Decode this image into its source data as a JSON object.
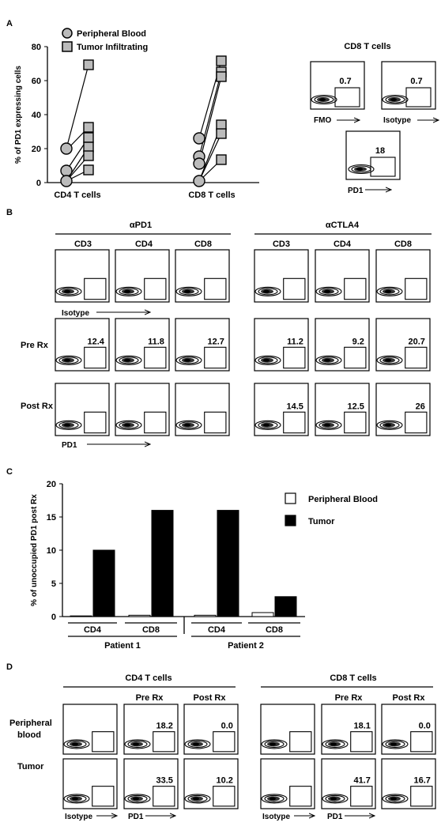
{
  "panel_labels": {
    "a": "A",
    "b": "B",
    "c": "C",
    "d": "D"
  },
  "panelA": {
    "legend": [
      "Peripheral Blood",
      "Tumor Infiltrating"
    ],
    "ylabel": "% of PD1 expressing cells",
    "yticks": [
      "0",
      "20",
      "40",
      "60",
      "80"
    ],
    "groups": [
      "CD4 T cells",
      "CD8 T cells"
    ],
    "inset_title": "CD8 T cells",
    "fmo": {
      "value": "0.7",
      "label": "FMO"
    },
    "isotype": {
      "value": "0.7",
      "label": "Isotype"
    },
    "pd1": {
      "value": "18",
      "label": "PD1"
    }
  },
  "panelB": {
    "left_title": "αPD1",
    "right_title": "αCTLA4",
    "cols": [
      "CD3",
      "CD4",
      "CD8"
    ],
    "rows": [
      "Pre Rx",
      "Post Rx"
    ],
    "iso_axis": "Isotype",
    "pd1_axis": "PD1",
    "pre_values": [
      "12.4",
      "11.8",
      "12.7",
      "11.2",
      "9.2",
      "20.7"
    ],
    "post_values": [
      "",
      "",
      "",
      "14.5",
      "12.5",
      "26"
    ]
  },
  "chart_data": {
    "type": "bar",
    "ylabel": "% of unoccupied PD1 post Rx",
    "ylim": [
      0,
      20
    ],
    "yticks": [
      "0",
      "5",
      "10",
      "15",
      "20"
    ],
    "categories": [
      "CD4",
      "CD8",
      "CD4",
      "CD8"
    ],
    "patients": [
      "Patient 1",
      "Patient 2"
    ],
    "series": [
      {
        "name": "Peripheral Blood",
        "color": "#ffffff",
        "values": [
          0.1,
          0.2,
          0.2,
          0.6
        ]
      },
      {
        "name": "Tumor",
        "color": "#000000",
        "values": [
          10.0,
          16.0,
          16.0,
          3.0
        ]
      }
    ]
  },
  "panelD": {
    "left_title": "CD4 T cells",
    "right_title": "CD8 T cells",
    "col_headers": [
      "Pre Rx",
      "Post Rx"
    ],
    "rows": [
      "Peripheral blood",
      "Tumor"
    ],
    "iso_axis": "Isotype",
    "pd1_axis": "PD1",
    "values": {
      "cd4_pb_pre": "18.2",
      "cd4_pb_post": "0.0",
      "cd4_t_pre": "33.5",
      "cd4_t_post": "10.2",
      "cd8_pb_pre": "18.1",
      "cd8_pb_post": "0.0",
      "cd8_t_pre": "41.7",
      "cd8_t_post": "16.7"
    }
  }
}
